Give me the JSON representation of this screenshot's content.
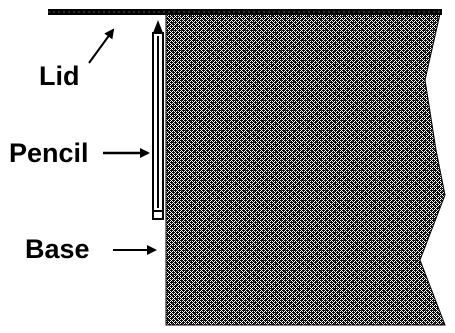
{
  "labels": {
    "lid": "Lid",
    "pencil": "Pencil",
    "base": "Base"
  },
  "colors": {
    "ink": "#000000",
    "paper": "#ffffff"
  },
  "icons": {
    "pencil": "pencil-icon"
  }
}
